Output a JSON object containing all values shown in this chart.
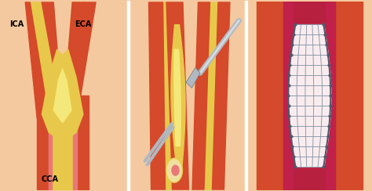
{
  "bg_color": "#f5c9a0",
  "panel_bg": "#f5c9a0",
  "artery_outer_color": "#d44a2a",
  "artery_dark": "#8b1a10",
  "plaque_yellow": "#e8c84a",
  "plaque_light": "#f5e87a",
  "plaque_cream": "#f0e0a0",
  "pink_inner": "#e87878",
  "magenta_wall": "#c0204a",
  "stent_color": "#d0d8e0",
  "stent_grid": "#8090a0",
  "stent_suture": "#505868",
  "scalpel_gray": "#b0b8c0",
  "scalpel_dark": "#707880",
  "label_ica": "ICA",
  "label_eca": "ECA",
  "label_cca": "CCA",
  "figsize": [
    4.74,
    2.44
  ],
  "dpi": 100
}
